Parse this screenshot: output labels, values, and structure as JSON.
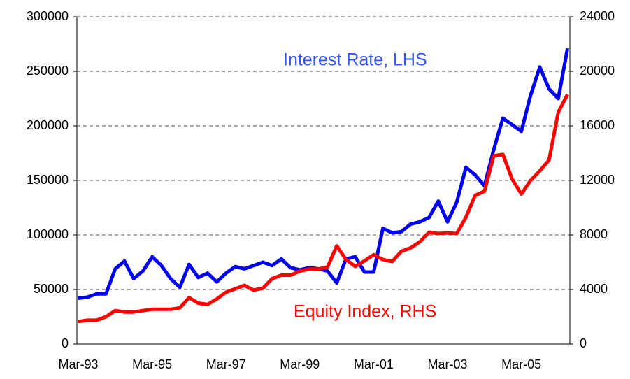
{
  "chart_data": {
    "type": "line",
    "categories": [
      "Mar-93",
      null,
      null,
      null,
      null,
      null,
      null,
      null,
      "Mar-95",
      null,
      null,
      null,
      null,
      null,
      null,
      null,
      "Mar-97",
      null,
      null,
      null,
      null,
      null,
      null,
      null,
      "Mar-99",
      null,
      null,
      null,
      null,
      null,
      null,
      null,
      "Mar-01",
      null,
      null,
      null,
      null,
      null,
      null,
      null,
      "Mar-03",
      null,
      null,
      null,
      null,
      null,
      null,
      null,
      "Mar-05",
      null,
      null,
      null,
      null,
      null
    ],
    "series": [
      {
        "name": "Interest Rate, LHS",
        "color": "#0000ee",
        "label_color": "#3355ff",
        "axis": "y",
        "values": [
          42000,
          43000,
          46000,
          46000,
          69000,
          76000,
          60000,
          67000,
          80000,
          72000,
          60000,
          52000,
          73000,
          61000,
          65000,
          57000,
          65000,
          71000,
          69000,
          72000,
          75000,
          72000,
          78000,
          70000,
          68000,
          70000,
          69000,
          67000,
          56000,
          78000,
          80000,
          66000,
          66000,
          106000,
          102000,
          103000,
          110000,
          112000,
          116000,
          131000,
          112000,
          130000,
          162000,
          155000,
          145000,
          178000,
          207000,
          201000,
          195000,
          228000,
          254000,
          234000,
          225000,
          271000
        ]
      },
      {
        "name": "Equity Index, RHS",
        "color": "#ff0000",
        "label_color": "#ff0000",
        "axis": "y2",
        "values": [
          1650,
          1750,
          1750,
          2000,
          2450,
          2350,
          2350,
          2450,
          2550,
          2550,
          2550,
          2650,
          3400,
          3000,
          2900,
          3300,
          3800,
          4050,
          4300,
          3950,
          4100,
          4800,
          5050,
          5050,
          5350,
          5500,
          5500,
          5650,
          7200,
          6200,
          5700,
          6100,
          6550,
          6200,
          6050,
          6800,
          7050,
          7500,
          8200,
          8100,
          8150,
          8100,
          9300,
          10900,
          11200,
          13800,
          13900,
          12100,
          11000,
          12000,
          12700,
          13500,
          17000,
          18300
        ]
      }
    ],
    "ylim": [
      0,
      300000
    ],
    "yticks": [
      0,
      50000,
      100000,
      150000,
      200000,
      250000,
      300000
    ],
    "y2lim": [
      0,
      24000
    ],
    "y2ticks": [
      0,
      4000,
      8000,
      12000,
      16000,
      20000,
      24000
    ],
    "grid": true
  }
}
